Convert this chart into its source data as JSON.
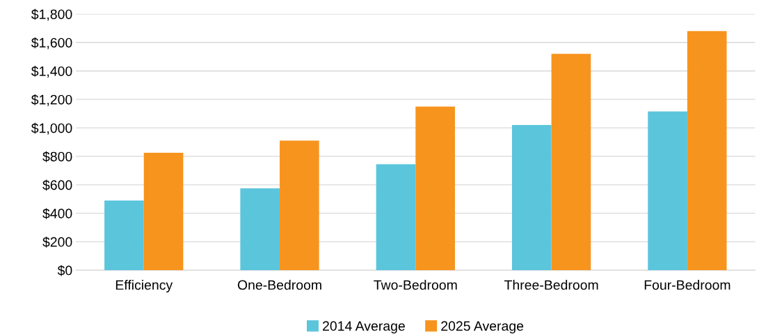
{
  "chart_data": {
    "type": "bar",
    "categories": [
      "Efficiency",
      "One-Bedroom",
      "Two-Bedroom",
      "Three-Bedroom",
      "Four-Bedroom"
    ],
    "series": [
      {
        "name": "2014 Average",
        "color": "#5bc5dc",
        "values": [
          490,
          575,
          745,
          1020,
          1115
        ]
      },
      {
        "name": "2025 Average",
        "color": "#f7941d",
        "values": [
          825,
          910,
          1150,
          1520,
          1680
        ]
      }
    ],
    "ylim": [
      0,
      1800
    ],
    "yticks": [
      {
        "value": 0,
        "label": "$0"
      },
      {
        "value": 200,
        "label": "$200"
      },
      {
        "value": 400,
        "label": "$400"
      },
      {
        "value": 600,
        "label": "$600"
      },
      {
        "value": 800,
        "label": "$800"
      },
      {
        "value": 1000,
        "label": "$1,000"
      },
      {
        "value": 1200,
        "label": "$1,200"
      },
      {
        "value": 1400,
        "label": "$1,400"
      },
      {
        "value": 1600,
        "label": "$1,600"
      },
      {
        "value": 1800,
        "label": "$1,800"
      }
    ],
    "grid": "y",
    "legend": "bottom"
  }
}
